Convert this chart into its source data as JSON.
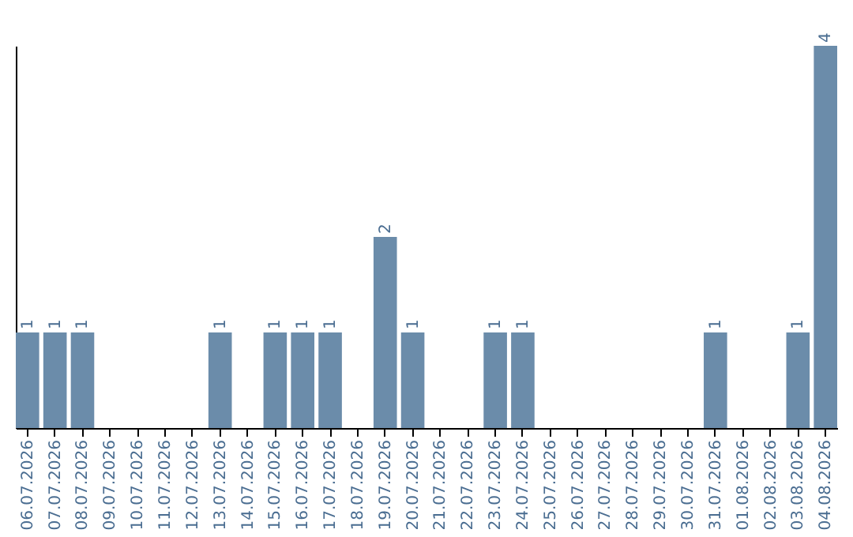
{
  "chart_data": {
    "type": "bar",
    "categories": [
      "06.07.2026",
      "07.07.2026",
      "08.07.2026",
      "09.07.2026",
      "10.07.2026",
      "11.07.2026",
      "12.07.2026",
      "13.07.2026",
      "14.07.2026",
      "15.07.2026",
      "16.07.2026",
      "17.07.2026",
      "18.07.2026",
      "19.07.2026",
      "20.07.2026",
      "21.07.2026",
      "22.07.2026",
      "23.07.2026",
      "24.07.2026",
      "25.07.2026",
      "26.07.2026",
      "27.07.2026",
      "28.07.2026",
      "29.07.2026",
      "30.07.2026",
      "31.07.2026",
      "01.08.2026",
      "02.08.2026",
      "03.08.2026",
      "04.08.2026"
    ],
    "values": [
      1,
      1,
      1,
      0,
      0,
      0,
      0,
      1,
      0,
      1,
      1,
      1,
      0,
      2,
      1,
      0,
      0,
      1,
      1,
      0,
      0,
      0,
      0,
      0,
      0,
      1,
      0,
      0,
      1,
      4
    ],
    "value_labels": [
      "1",
      "1",
      "1",
      null,
      null,
      null,
      null,
      "1",
      null,
      "1",
      "1",
      "1",
      null,
      "2",
      "1",
      null,
      null,
      "1",
      "1",
      null,
      null,
      null,
      null,
      null,
      null,
      "1",
      null,
      null,
      "1",
      "4"
    ],
    "color": "#6b8caa",
    "grid": false,
    "tick_labels": "x"
  }
}
